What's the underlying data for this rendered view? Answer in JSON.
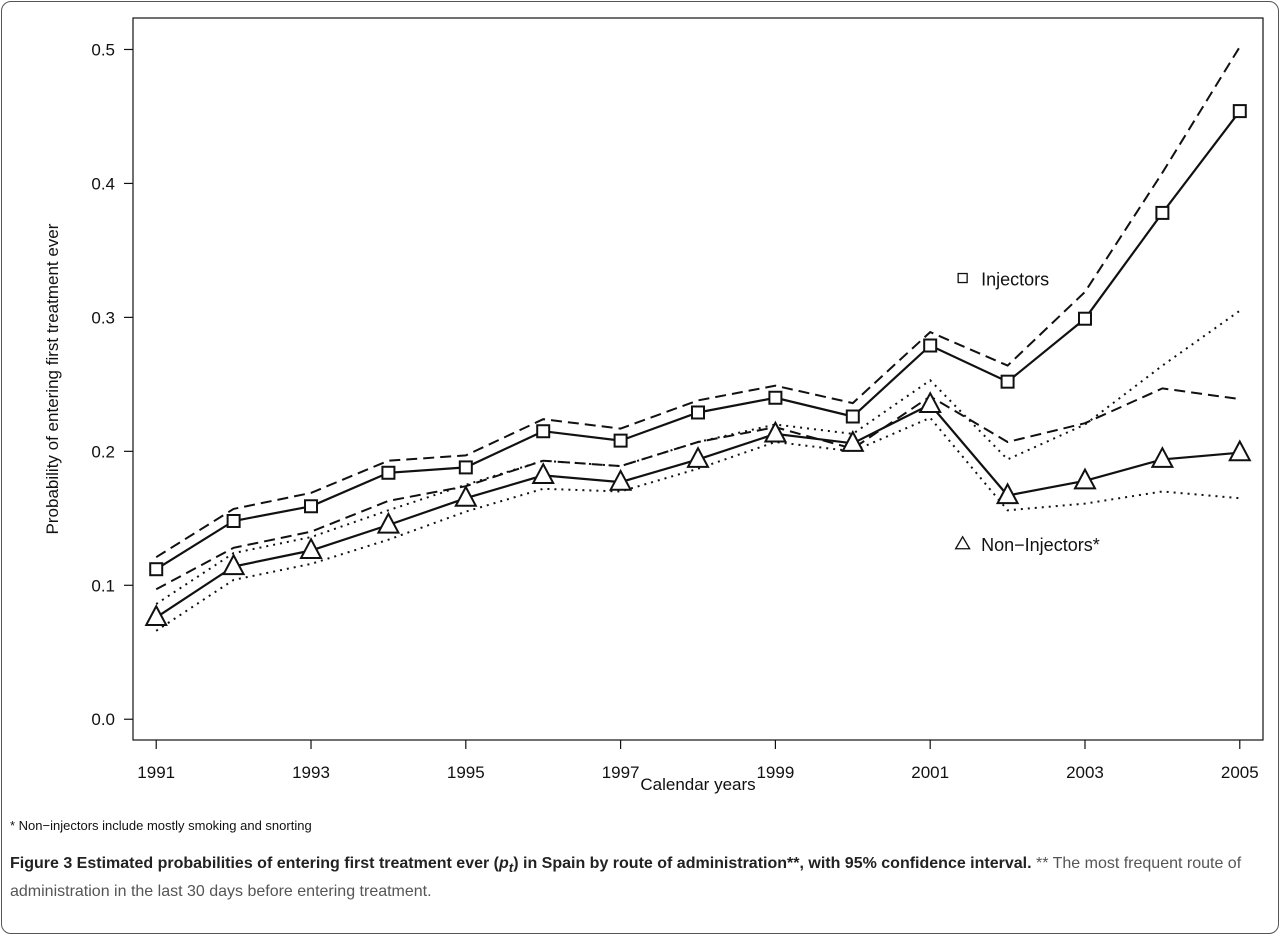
{
  "chart_data": {
    "type": "line",
    "title": "",
    "xlabel": "Calendar years",
    "ylabel": "Probability of entering first treatment ever",
    "xlim": [
      1991,
      2005
    ],
    "ylim": [
      0,
      0.5
    ],
    "x_ticks": [
      "1991",
      "1993",
      "1995",
      "1997",
      "1999",
      "2001",
      "2003",
      "2005"
    ],
    "y_ticks": [
      "0.0",
      "0.1",
      "0.2",
      "0.3",
      "0.4",
      "0.5"
    ],
    "x": [
      1991,
      1992,
      1993,
      1994,
      1995,
      1996,
      1997,
      1998,
      1999,
      2000,
      2001,
      2002,
      2003,
      2004,
      2005
    ],
    "series": [
      {
        "name": "Injectors",
        "marker": "square",
        "style": "solid",
        "values": [
          0.112,
          0.148,
          0.159,
          0.184,
          0.188,
          0.215,
          0.208,
          0.229,
          0.24,
          0.226,
          0.279,
          0.252,
          0.299,
          0.378,
          0.454
        ]
      },
      {
        "role": "upper-ci",
        "of": "Injectors",
        "style": "dashed",
        "values": [
          0.121,
          0.157,
          0.169,
          0.193,
          0.197,
          0.224,
          0.217,
          0.238,
          0.249,
          0.236,
          0.289,
          0.264,
          0.319,
          0.408,
          0.502
        ]
      },
      {
        "role": "lower-ci",
        "of": "Injectors",
        "style": "dashed",
        "values": [
          0.097,
          0.128,
          0.14,
          0.163,
          0.174,
          0.193,
          0.189,
          0.207,
          0.218,
          0.202,
          0.241,
          0.207,
          0.221,
          0.247,
          0.239
        ]
      },
      {
        "name": "Non-Injectors*",
        "marker": "triangle",
        "style": "solid",
        "values": [
          0.076,
          0.114,
          0.126,
          0.145,
          0.165,
          0.182,
          0.177,
          0.194,
          0.213,
          0.206,
          0.235,
          0.167,
          0.178,
          0.194,
          0.199
        ]
      },
      {
        "role": "upper-ci",
        "of": "Non-Injectors*",
        "style": "dotted",
        "values": [
          0.086,
          0.124,
          0.136,
          0.156,
          0.175,
          0.193,
          0.189,
          0.207,
          0.22,
          0.213,
          0.253,
          0.194,
          0.22,
          0.264,
          0.305
        ]
      },
      {
        "role": "lower-ci",
        "of": "Non-Injectors*",
        "style": "dotted",
        "values": [
          0.066,
          0.104,
          0.116,
          0.134,
          0.155,
          0.172,
          0.17,
          0.187,
          0.207,
          0.2,
          0.225,
          0.156,
          0.161,
          0.17,
          0.165
        ]
      }
    ],
    "annotations": [
      {
        "text": "Injectors",
        "marker": "square",
        "x": 2001.4,
        "y": 0.329
      },
      {
        "text": "Non−Injectors*",
        "marker": "triangle",
        "x": 2001.4,
        "y": 0.131
      }
    ]
  },
  "footnote": "* Non−injectors include mostly smoking and snorting",
  "caption": {
    "bold_prefix": "Figure 3 Estimated probabilities of entering first treatment ever (",
    "bold_symbol": "p",
    "bold_subscript": "t",
    "bold_suffix": ") in Spain by route of administration**, with 95% confidence interval.",
    "note": " ** The most frequent route of administration in the last 30 days before entering treatment."
  },
  "colors": {
    "line": "#111111",
    "frame": "#555555"
  }
}
